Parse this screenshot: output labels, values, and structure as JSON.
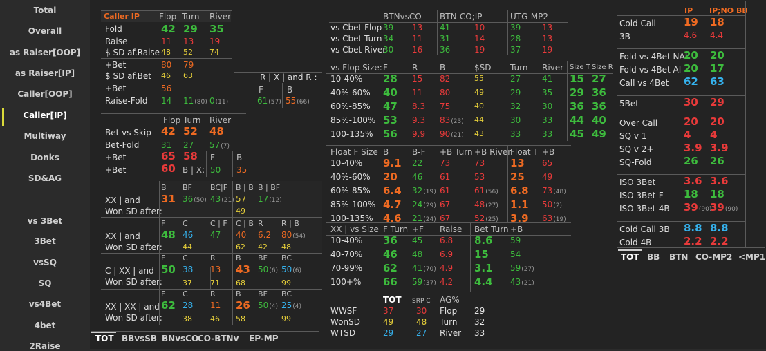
{
  "sidebar": {
    "items": [
      "Total",
      "Overall",
      "as Raiser[OOP]",
      "as Raiser[IP]",
      "Caller[OOP]",
      "Caller[IP]",
      "Multiway",
      "Donks",
      "SD&AG",
      "vs 3Bet",
      "3Bet",
      "vsSQ",
      "SQ",
      "vs4Bet",
      "4bet",
      "2Raise"
    ],
    "active": "Caller[IP]"
  },
  "left": {
    "sec1": {
      "header": [
        "Caller IP",
        "Flop",
        "Turn",
        "River"
      ],
      "rows": [
        {
          "label": "Fold",
          "v": [
            "42",
            "29",
            "35"
          ]
        },
        {
          "label": "Raise",
          "v": [
            "11",
            "13",
            "19"
          ]
        },
        {
          "label": "$ SD af.Raise",
          "v": [
            "48",
            "52",
            "74"
          ]
        },
        {
          "label": "+Bet",
          "v": [
            "80",
            "79"
          ]
        },
        {
          "label": "$ SD af.Bet",
          "v": [
            "46",
            "63"
          ]
        },
        {
          "label": "+Bet",
          "v": [
            "56"
          ]
        },
        {
          "label": "Raise-Fold",
          "v": [
            "14",
            "11",
            "0"
          ],
          "c": [
            "",
            "(80)",
            "(11)"
          ]
        }
      ],
      "rx": {
        "header": "R | X | and R :",
        "cols": [
          "F",
          "B"
        ],
        "v": [
          "61",
          "55"
        ],
        "c": [
          "(57)",
          "(66)"
        ]
      }
    },
    "sec2": {
      "header": [
        "Flop",
        "Turn",
        "River"
      ],
      "rows": [
        {
          "label": "Bet vs Skip",
          "v": [
            "42",
            "52",
            "48"
          ]
        },
        {
          "label": "Bet-Fold",
          "v": [
            "31",
            "27",
            "57"
          ],
          "c": [
            "",
            "",
            "(7)"
          ]
        },
        {
          "label": "+Bet",
          "v": [
            "65",
            "58"
          ],
          "extra": "B"
        },
        {
          "label": "+Bet",
          "v": [
            "60"
          ],
          "bx": "B | X:",
          "v2": [
            "50",
            "35"
          ]
        }
      ],
      "fcol": "F"
    },
    "sec3": {
      "b1": {
        "cols": [
          "B",
          "BF",
          "BC|F",
          "B | B",
          "B | BF"
        ],
        "l1": "XX | and",
        "l2": "Won SD after:",
        "v": [
          "31",
          "36",
          "43",
          "57",
          "17"
        ],
        "c": [
          "",
          "(50)",
          "(21)",
          "",
          "(12)"
        ],
        "sd": "49"
      },
      "b2": {
        "cols": [
          "F",
          "C",
          "C | F",
          "C | B",
          "R",
          "R | B"
        ],
        "l1": "XX | and",
        "l2": "Won SD after:",
        "v": [
          "48",
          "46",
          "47",
          "40",
          "6.2",
          "80"
        ],
        "c": [
          "",
          "",
          "",
          "",
          "",
          "(54)"
        ],
        "sd": [
          "44",
          "62",
          "42",
          "48"
        ]
      },
      "b3": {
        "cols": [
          "F",
          "C",
          "R",
          "B",
          "BF",
          "BC"
        ],
        "l1": "C | XX | and",
        "l2": "Won SD after:",
        "v": [
          "50",
          "38",
          "13",
          "43",
          "50",
          "50"
        ],
        "c": [
          "",
          "",
          "",
          "",
          "(6)",
          "(6)"
        ],
        "sd": [
          "37",
          "71",
          "68",
          "99"
        ]
      },
      "b4": {
        "cols": [
          "F",
          "C",
          "R",
          "B",
          "BF",
          "BC"
        ],
        "l1": "XX | XX | and",
        "l2": "Won SD after:",
        "v": [
          "62",
          "28",
          "11",
          "26",
          "50",
          "25"
        ],
        "c": [
          "",
          "",
          "",
          "",
          "(4)",
          "(4)"
        ],
        "sd": [
          "38",
          "46",
          "58",
          "99"
        ]
      }
    },
    "tabs": [
      "TOT",
      "BBvsSB",
      "BNvsCO",
      "CO-BTNv",
      "EP-MP"
    ]
  },
  "middle": {
    "cbet": {
      "header": [
        "BTNvsCO",
        "BTN-CO;IP",
        "UTG-MP2"
      ],
      "rows": [
        {
          "label": "vs Cbet Flop",
          "v": [
            "39",
            "13",
            "41",
            "10",
            "39",
            "13"
          ]
        },
        {
          "label": "vs Cbet Turn",
          "v": [
            "34",
            "11",
            "31",
            "14",
            "28",
            "13"
          ]
        },
        {
          "label": "vs Cbet River",
          "v": [
            "30",
            "16",
            "36",
            "19",
            "37",
            "19"
          ]
        }
      ]
    },
    "flopsize": {
      "header": [
        "vs Flop Size:",
        "F",
        "R",
        "B",
        "$SD",
        "Turn",
        "River",
        "Size T",
        "Size R"
      ],
      "rows": [
        {
          "label": "10-40%",
          "v": [
            "28",
            "15",
            "82",
            "55",
            "27",
            "41",
            "15",
            "27"
          ]
        },
        {
          "label": "40%-60%",
          "v": [
            "40",
            "11",
            "80",
            "49",
            "29",
            "35",
            "29",
            "36"
          ]
        },
        {
          "label": "60%-85%",
          "v": [
            "47",
            "8.3",
            "75",
            "40",
            "32",
            "30",
            "36",
            "36"
          ]
        },
        {
          "label": "85%-100%",
          "v": [
            "53",
            "9.3",
            "83",
            "44",
            "30",
            "33",
            "44",
            "40"
          ],
          "c": [
            "",
            "",
            "(23)",
            "",
            "",
            "",
            "",
            ""
          ]
        },
        {
          "label": "100-135%",
          "v": [
            "56",
            "9.9",
            "90",
            "43",
            "33",
            "33",
            "45",
            "49"
          ],
          "c": [
            "",
            "",
            "(21)",
            "",
            "",
            "",
            "",
            ""
          ]
        }
      ]
    },
    "float": {
      "header": [
        "Float F Size",
        "B",
        "B-F",
        "+B Turn",
        "+B River",
        "Float T",
        "+B"
      ],
      "rows": [
        {
          "label": "10-40%",
          "v": [
            "9.1",
            "22",
            "73",
            "73",
            "13",
            "65"
          ]
        },
        {
          "label": "40%-60%",
          "v": [
            "20",
            "46",
            "61",
            "53",
            "25",
            "49"
          ]
        },
        {
          "label": "60%-85%",
          "v": [
            "6.4",
            "32",
            "61",
            "61",
            "6.8",
            "73"
          ],
          "c": [
            "",
            "(19)",
            "",
            "(56)",
            "",
            "(48)"
          ]
        },
        {
          "label": "85%-100%",
          "v": [
            "4.7",
            "24",
            "67",
            "48",
            "1.1",
            "50"
          ],
          "c": [
            "",
            "(29)",
            "",
            "(27)",
            "",
            "(2)"
          ]
        },
        {
          "label": "100-135%",
          "v": [
            "4.6",
            "21",
            "67",
            "52",
            "3.9",
            "63"
          ],
          "c": [
            "",
            "(24)",
            "",
            "(25)",
            "",
            "(19)"
          ]
        }
      ]
    },
    "xxsize": {
      "header": [
        "XX | vs Size",
        "F Turn",
        "+F",
        "Raise",
        "Bet Turn",
        "+B"
      ],
      "rows": [
        {
          "label": "10-40%",
          "v": [
            "36",
            "45",
            "6.8",
            "8.6",
            "59"
          ]
        },
        {
          "label": "40-70%",
          "v": [
            "46",
            "48",
            "6.9",
            "15",
            "54"
          ]
        },
        {
          "label": "70-99%",
          "v": [
            "62",
            "41",
            "4.9",
            "3.1",
            "59"
          ],
          "c": [
            "",
            "(70)",
            "",
            "",
            "(27)"
          ]
        },
        {
          "label": "100+%",
          "v": [
            "66",
            "59",
            "4.2",
            "4.4",
            "43"
          ],
          "c": [
            "",
            "(37)",
            "",
            "",
            "(21)"
          ]
        }
      ]
    },
    "summary": {
      "header": [
        "TOT",
        "SRP C",
        "AG%"
      ],
      "rows": [
        {
          "label": "WWSF",
          "v": [
            "37",
            "30"
          ],
          "ag": "Flop",
          "agv": "29"
        },
        {
          "label": "WonSD",
          "v": [
            "49",
            "48"
          ],
          "ag": "Turn",
          "agv": "32"
        },
        {
          "label": "WTSD",
          "v": [
            "29",
            "27"
          ],
          "ag": "River",
          "agv": "33"
        }
      ]
    }
  },
  "right": {
    "header": [
      "IP",
      "IP;NO BB"
    ],
    "groups": [
      [
        {
          "label": "Cold Call",
          "v": [
            "19",
            "18"
          ]
        },
        {
          "label": "3B",
          "v": [
            "4.6",
            "4.4"
          ]
        }
      ],
      [
        {
          "label": "Fold vs 4Bet NAI",
          "v": [
            "20",
            "20"
          ]
        },
        {
          "label": "Fold vs 4Bet AI",
          "v": [
            "20",
            "17"
          ]
        },
        {
          "label": "Call vs 4Bet",
          "v": [
            "62",
            "63"
          ]
        }
      ],
      [
        {
          "label": "5Bet",
          "v": [
            "30",
            "29"
          ]
        }
      ],
      [
        {
          "label": "Over Call",
          "v": [
            "20",
            "20"
          ]
        },
        {
          "label": "SQ v 1",
          "v": [
            "4",
            "4"
          ]
        },
        {
          "label": "SQ v 2+",
          "v": [
            "3.9",
            "3.9"
          ]
        },
        {
          "label": "SQ-Fold",
          "v": [
            "26",
            "26"
          ]
        }
      ],
      [
        {
          "label": "ISO 3Bet",
          "v": [
            "3.6",
            "3.6"
          ]
        },
        {
          "label": "ISO 3Bet-F",
          "v": [
            "18",
            "18"
          ]
        },
        {
          "label": "ISO 3Bet-4B",
          "v": [
            "39",
            "39"
          ],
          "c": [
            "(90)",
            "(90)"
          ]
        }
      ],
      [
        {
          "label": "Cold Call 3B",
          "v": [
            "8.8",
            "8.8"
          ]
        },
        {
          "label": "Cold 4B",
          "v": [
            "2.2",
            "2.2"
          ]
        }
      ]
    ],
    "tabs": [
      "TOT",
      "BB",
      "BTN",
      "CO-MP2",
      "<MP1"
    ]
  }
}
